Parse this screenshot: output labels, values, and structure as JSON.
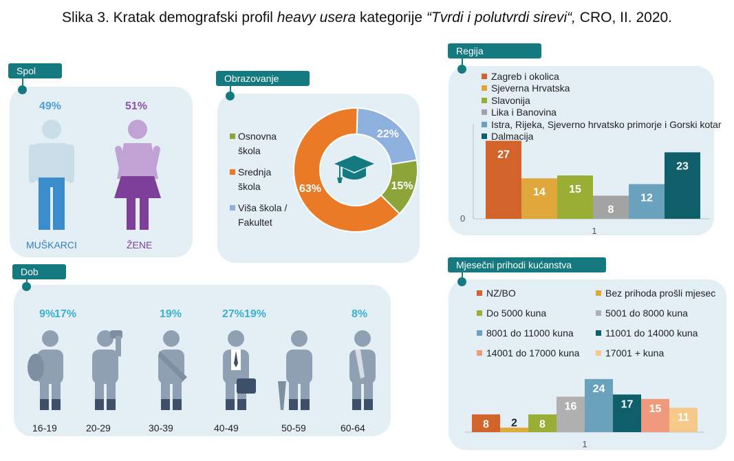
{
  "title": {
    "prefix": "Slika 3. Kratak demografski profil ",
    "italic1": "heavy usera",
    "mid": " kategorije ",
    "italic2": "“Tvrdi i polutvrdi sirevi“,",
    "suffix": " CRO, II. 2020."
  },
  "colors": {
    "teal": "#147a7f",
    "panel": "#e3eff5",
    "male": "#4a9fd8",
    "female": "#8c54a8",
    "orange": "#ea7a25",
    "green": "#8ca43a",
    "blue": "#8eb0dc"
  },
  "spol": {
    "tab": "Spol",
    "male": {
      "pct": "49%",
      "label": "MUŠKARCI",
      "icon": "man-icon"
    },
    "female": {
      "pct": "51%",
      "label": "ŽENE",
      "icon": "woman-icon"
    }
  },
  "obrazovanje": {
    "tab": "Obrazovanje",
    "icon": "graduation-cap-icon",
    "legend": [
      {
        "l1": "Osnovna",
        "l2": "škola",
        "color": "#8ca43a"
      },
      {
        "l1": "Srednja",
        "l2": "škola",
        "color": "#ea7a25"
      },
      {
        "l1": "Viša škola /",
        "l2": "Fakultet",
        "color": "#8eb0dc"
      }
    ]
  },
  "dob": {
    "tab": "Dob",
    "groups": [
      {
        "label": "16-19",
        "pct": "9%",
        "icon": "teen-backpack-icon"
      },
      {
        "label": "20-29",
        "pct": "17%",
        "icon": "person-phone-icon"
      },
      {
        "label": "30-39",
        "pct": "19%",
        "icon": "person-messenger-bag-icon"
      },
      {
        "label": "40-49",
        "pct": "27%",
        "icon": "businessman-briefcase-icon"
      },
      {
        "label": "50-59",
        "pct": "19%",
        "icon": "person-umbrella-icon"
      },
      {
        "label": "60-64",
        "pct": "8%",
        "icon": "elderly-person-icon"
      }
    ]
  },
  "regija": {
    "tab": "Regija",
    "legend": [
      {
        "name": "Zagreb i okolica",
        "color": "#d2632b"
      },
      {
        "name": "Sjeverna Hrvatska",
        "color": "#e0a83a"
      },
      {
        "name": "Slavonija",
        "color": "#9aae35"
      },
      {
        "name": "Lika i Banovina",
        "color": "#a3a3a3"
      },
      {
        "name": "Istra, Rijeka, Sjeverno hrvatsko primorje i Gorski kotar",
        "color": "#6aa2bd"
      },
      {
        "name": "Dalmacija",
        "color": "#0f5f6b"
      }
    ],
    "zero_label": "0",
    "category_label": "1"
  },
  "prihodi": {
    "tab": "Mjesečni prihodi kućanstva",
    "legend": [
      {
        "name": "NZ/BO",
        "color": "#d2632b"
      },
      {
        "name": "Bez prihoda prošli mjesec",
        "color": "#e0a83a"
      },
      {
        "name": "Do 5000 kuna",
        "color": "#9aae35"
      },
      {
        "name": "5001 do 8000 kuna",
        "color": "#b0b0b0"
      },
      {
        "name": "8001 do 11000 kuna",
        "color": "#6aa2bd"
      },
      {
        "name": "11001 do 14000 kuna",
        "color": "#0f5f6b"
      },
      {
        "name": "14001 do 17000 kuna",
        "color": "#ef9a7c"
      },
      {
        "name": "17001 + kuna",
        "color": "#f5c98a"
      }
    ],
    "category_label": "1"
  },
  "chart_data": [
    {
      "type": "pie",
      "subtype": "donut",
      "categories": [
        "Osnovna škola",
        "Srednja škola",
        "Viša škola / Fakultet"
      ],
      "values": [
        15,
        63,
        22
      ],
      "value_labels": [
        "15%",
        "63%",
        "22%"
      ],
      "colors": [
        "#8ca43a",
        "#ea7a25",
        "#8eb0dc"
      ]
    },
    {
      "type": "bar",
      "categories": [
        "1"
      ],
      "series": [
        {
          "name": "Zagreb i okolica",
          "values": [
            27
          ]
        },
        {
          "name": "Sjeverna Hrvatska",
          "values": [
            14
          ]
        },
        {
          "name": "Slavonija",
          "values": [
            15
          ]
        },
        {
          "name": "Lika i Banovina",
          "values": [
            8
          ]
        },
        {
          "name": "Istra, Rijeka, Sjeverno hrvatsko primorje i Gorski kotar",
          "values": [
            12
          ]
        },
        {
          "name": "Dalmacija",
          "values": [
            23
          ]
        }
      ],
      "ylim": [
        0,
        30
      ],
      "legend": "top-left"
    },
    {
      "type": "bar",
      "categories": [
        "1"
      ],
      "series": [
        {
          "name": "NZ/BO",
          "values": [
            8
          ]
        },
        {
          "name": "Bez prihoda prošli mjesec",
          "values": [
            2
          ]
        },
        {
          "name": "Do 5000 kuna",
          "values": [
            8
          ]
        },
        {
          "name": "5001 do 8000 kuna",
          "values": [
            16
          ]
        },
        {
          "name": "8001 do 11000 kuna",
          "values": [
            24
          ]
        },
        {
          "name": "11001 do 14000 kuna",
          "values": [
            17
          ]
        },
        {
          "name": "14001 do 17000 kuna",
          "values": [
            15
          ]
        },
        {
          "name": "17001 + kuna",
          "values": [
            11
          ]
        }
      ],
      "ylim": [
        0,
        28
      ],
      "legend": "top"
    }
  ]
}
